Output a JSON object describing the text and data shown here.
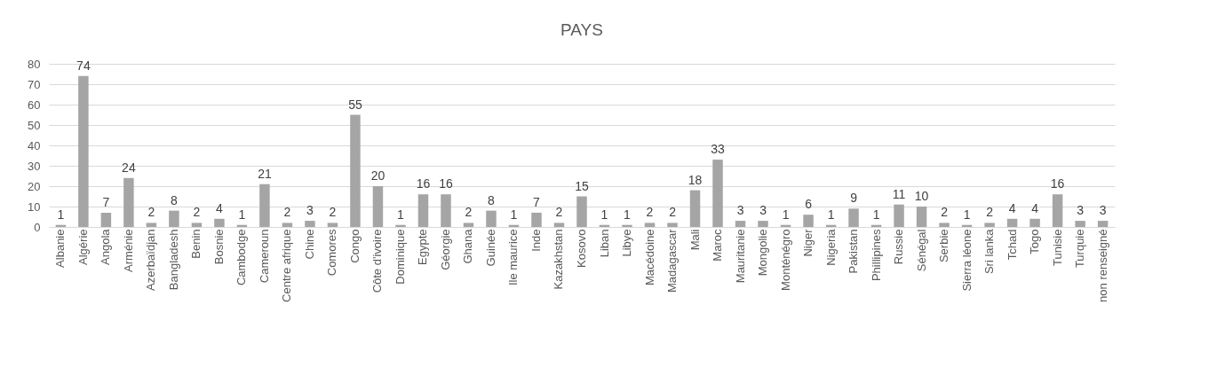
{
  "chart_data": {
    "type": "bar",
    "title": "PAYS",
    "categories": [
      "Albanie",
      "Algérie",
      "Angola",
      "Arménie",
      "Azerbaïdjan",
      "Bangladesh",
      "Benin",
      "Bosnie",
      "Cambodge",
      "Cameroun",
      "Centre afrique",
      "Chine",
      "Comores",
      "Congo",
      "Côte d'ivoire",
      "Dominique",
      "Egypte",
      "Géorgie",
      "Ghana",
      "Guinée",
      "Ile maurice",
      "Inde",
      "Kazakhstan",
      "Kosovo",
      "Liban",
      "Libye",
      "Macédoine",
      "Madagascar",
      "Mali",
      "Maroc",
      "Mauritanie",
      "Mongolie",
      "Monténégro",
      "Niger",
      "Nigeria",
      "Pakistan",
      "Phillipines",
      "Russie",
      "Sénégal",
      "Serbie",
      "Sierra léone",
      "Sri lanka",
      "Tchad",
      "Togo",
      "Tunisie",
      "Turquie",
      "non renseigné"
    ],
    "values": [
      1,
      74,
      7,
      24,
      2,
      8,
      2,
      4,
      1,
      21,
      2,
      3,
      2,
      55,
      20,
      1,
      16,
      16,
      2,
      8,
      1,
      7,
      2,
      15,
      1,
      1,
      2,
      2,
      18,
      33,
      3,
      3,
      1,
      6,
      1,
      9,
      1,
      11,
      10,
      2,
      1,
      2,
      4,
      4,
      16,
      3,
      3
    ],
    "color": "#a5a5a5",
    "ylim": [
      0,
      80
    ],
    "yticks": [
      0,
      10,
      20,
      30,
      40,
      50,
      60,
      70,
      80
    ],
    "grid": "y",
    "data_labels": true
  }
}
